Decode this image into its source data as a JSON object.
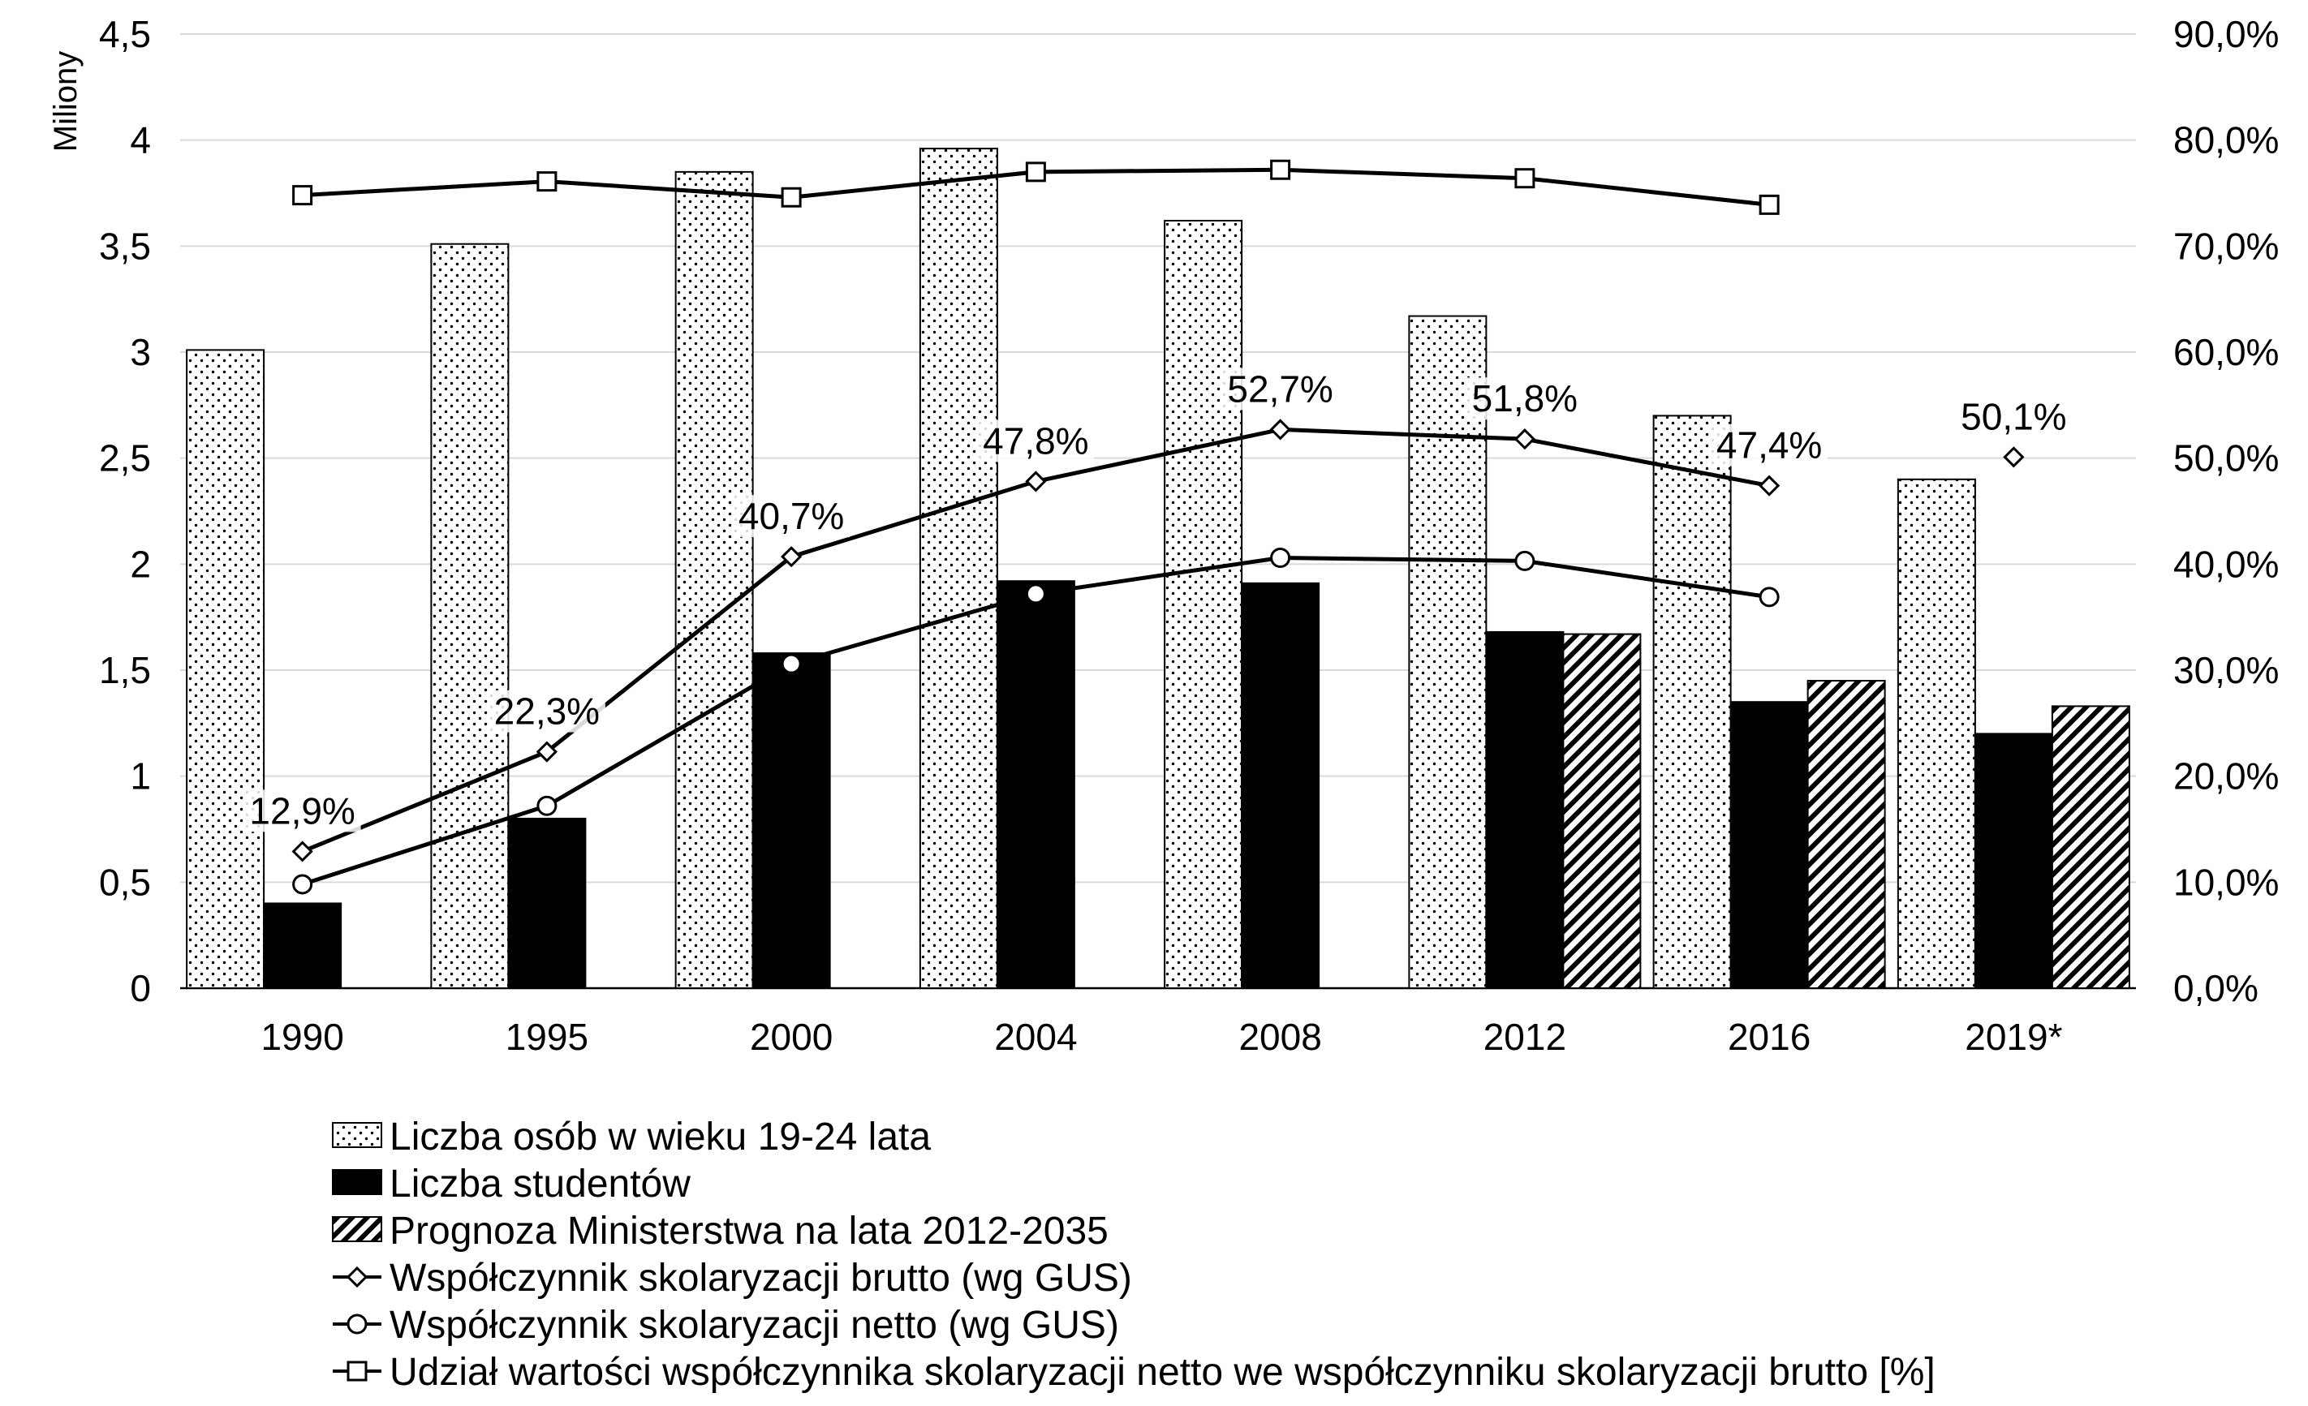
{
  "chart_data": {
    "type": "bar",
    "categories": [
      "1990",
      "1995",
      "2000",
      "2004",
      "2008",
      "2012",
      "2016",
      "2019*"
    ],
    "ylabel": "Miliony",
    "ylim": [
      0,
      4.5
    ],
    "y_ticks": [
      "0",
      "0,5",
      "1",
      "1,5",
      "2",
      "2,5",
      "3",
      "3,5",
      "4",
      "4,5"
    ],
    "y2lim": [
      0,
      90
    ],
    "y2_ticks": [
      "0,0%",
      "10,0%",
      "20,0%",
      "30,0%",
      "40,0%",
      "50,0%",
      "60,0%",
      "70,0%",
      "80,0%",
      "90,0%"
    ],
    "grid": true,
    "legend_position": "bottom",
    "bar_series": [
      {
        "name": "Liczba osób w wieku 19-24 lata",
        "pattern": "dots",
        "axis": "left",
        "values": [
          3.01,
          3.51,
          3.85,
          3.96,
          3.62,
          3.17,
          2.7,
          2.4
        ]
      },
      {
        "name": "Liczba studentów",
        "pattern": "solid",
        "axis": "left",
        "values": [
          0.4,
          0.8,
          1.58,
          1.92,
          1.91,
          1.68,
          1.35,
          1.2
        ]
      },
      {
        "name": "Prognoza Ministerstwa na lata 2012-2035",
        "pattern": "hatch",
        "axis": "left",
        "values": [
          null,
          null,
          null,
          null,
          null,
          1.67,
          1.45,
          1.33
        ]
      }
    ],
    "line_series": [
      {
        "name": "Współczynnik skolaryzacji brutto (wg GUS)",
        "marker": "diamond",
        "axis": "right",
        "values": [
          12.9,
          22.3,
          40.7,
          47.8,
          52.7,
          51.8,
          47.4,
          50.1
        ],
        "labels": [
          "12,9%",
          "22,3%",
          "40,7%",
          "47,8%",
          "52,7%",
          "51,8%",
          "47,4%",
          "50,1%"
        ],
        "connect_until": 6
      },
      {
        "name": "Współczynnik skolaryzacji netto (wg GUS)",
        "marker": "circle",
        "axis": "right",
        "values": [
          9.8,
          17.2,
          30.6,
          37.2,
          40.6,
          40.3,
          36.9,
          null
        ]
      },
      {
        "name": "Udział wartości współczynnika skolaryzacji netto we współczynniku skolaryzacji brutto [%]",
        "marker": "square",
        "axis": "right",
        "values": [
          74.8,
          76.1,
          74.6,
          77.0,
          77.2,
          76.4,
          73.9,
          null
        ]
      }
    ]
  },
  "colors": {
    "bars_solid": "#000000",
    "grid": "#d9d9d9",
    "line": "#000000",
    "background": "#ffffff"
  }
}
